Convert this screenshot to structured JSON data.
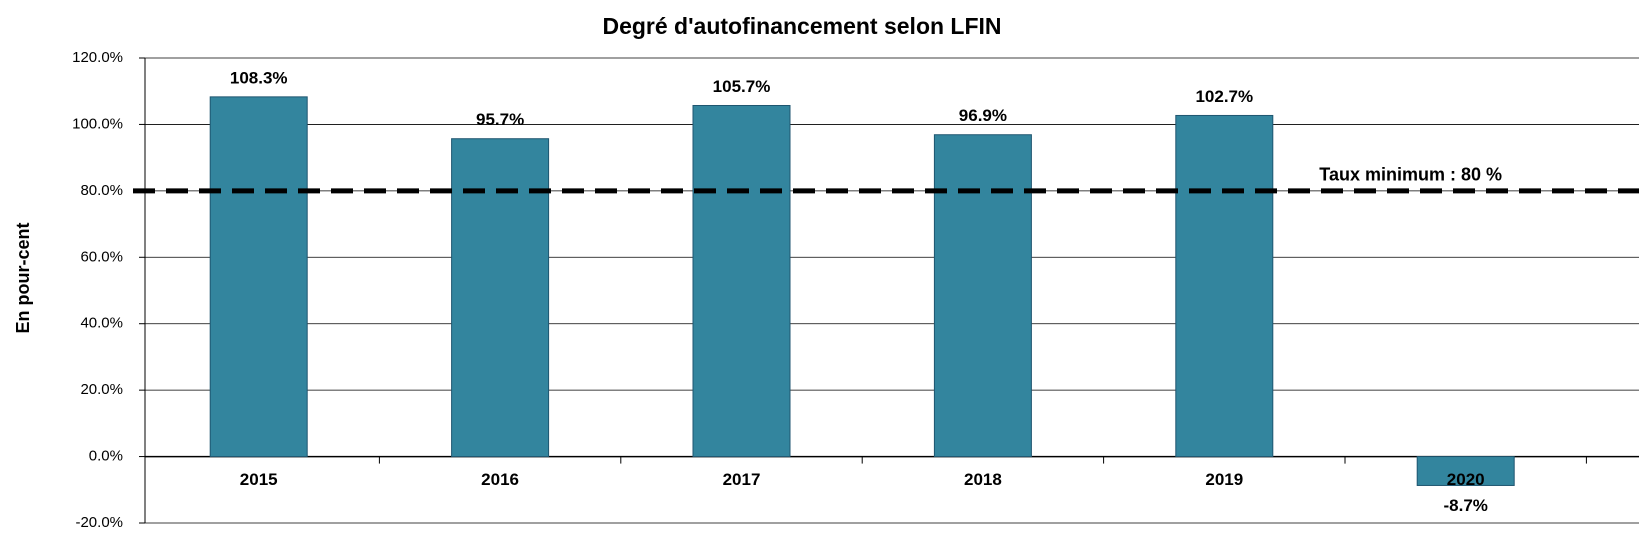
{
  "chart_data": {
    "type": "bar",
    "title": "Degré d'autofinancement selon LFIN",
    "y_label": "En pour-cent",
    "categories": [
      "2015",
      "2016",
      "2017",
      "2018",
      "2019",
      "2020"
    ],
    "values": [
      108.3,
      95.7,
      105.7,
      96.9,
      102.7,
      -8.7
    ],
    "value_labels": [
      "108.3%",
      "95.7%",
      "105.7%",
      "96.9%",
      "102.7%",
      "-8.7%"
    ],
    "color": "#33859e",
    "ylim": [
      -20,
      120
    ],
    "yticks": [
      {
        "value": -20,
        "label": "-20.0%"
      },
      {
        "value": 0,
        "label": "0.0%"
      },
      {
        "value": 20,
        "label": "20.0%"
      },
      {
        "value": 40,
        "label": "40.0%"
      },
      {
        "value": 60,
        "label": "60.0%"
      },
      {
        "value": 80,
        "label": "80.0%"
      },
      {
        "value": 100,
        "label": "100.0%"
      },
      {
        "value": 120,
        "label": "120.0%"
      }
    ],
    "grid": true,
    "reference_line": {
      "value": 80,
      "label": "Taux minimum : 80 %"
    }
  }
}
